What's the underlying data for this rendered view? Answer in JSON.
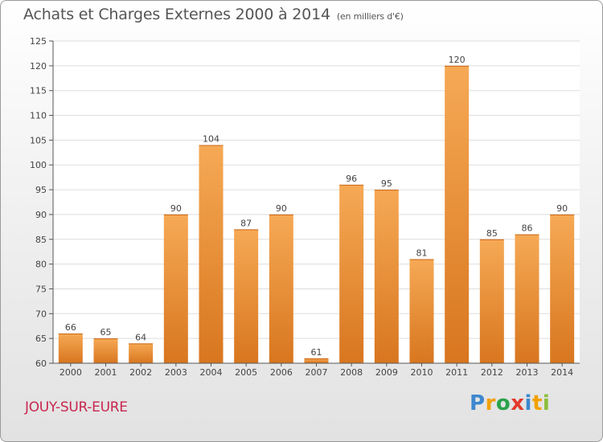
{
  "header": {
    "title": "Achats et Charges Externes 2000 à 2014",
    "subtitle": "(en milliers d'€)"
  },
  "footer": {
    "location": "JOUY-SUR-EURE",
    "brand_letters": [
      "P",
      "r",
      "o",
      "x",
      "i",
      "t",
      "i"
    ]
  },
  "colors": {
    "bar_top": "#f6a955",
    "bar_bottom": "#d8761f",
    "axis": "#555555",
    "grid": "#dddddd",
    "location_text": "#c8264e"
  },
  "chart_data": {
    "type": "bar",
    "title": "Achats et Charges Externes 2000 à 2014",
    "subtitle": "(en milliers d'€)",
    "categories": [
      "2000",
      "2001",
      "2002",
      "2003",
      "2004",
      "2005",
      "2006",
      "2007",
      "2008",
      "2009",
      "2010",
      "2011",
      "2012",
      "2013",
      "2014"
    ],
    "values": [
      66,
      65,
      64,
      90,
      104,
      87,
      90,
      61,
      96,
      95,
      81,
      120,
      85,
      86,
      90
    ],
    "ylim": [
      60,
      125
    ],
    "yticks": [
      60,
      65,
      70,
      75,
      80,
      85,
      90,
      95,
      100,
      105,
      110,
      115,
      120,
      125
    ],
    "grid": true,
    "data_labels": true,
    "legend": "none"
  }
}
